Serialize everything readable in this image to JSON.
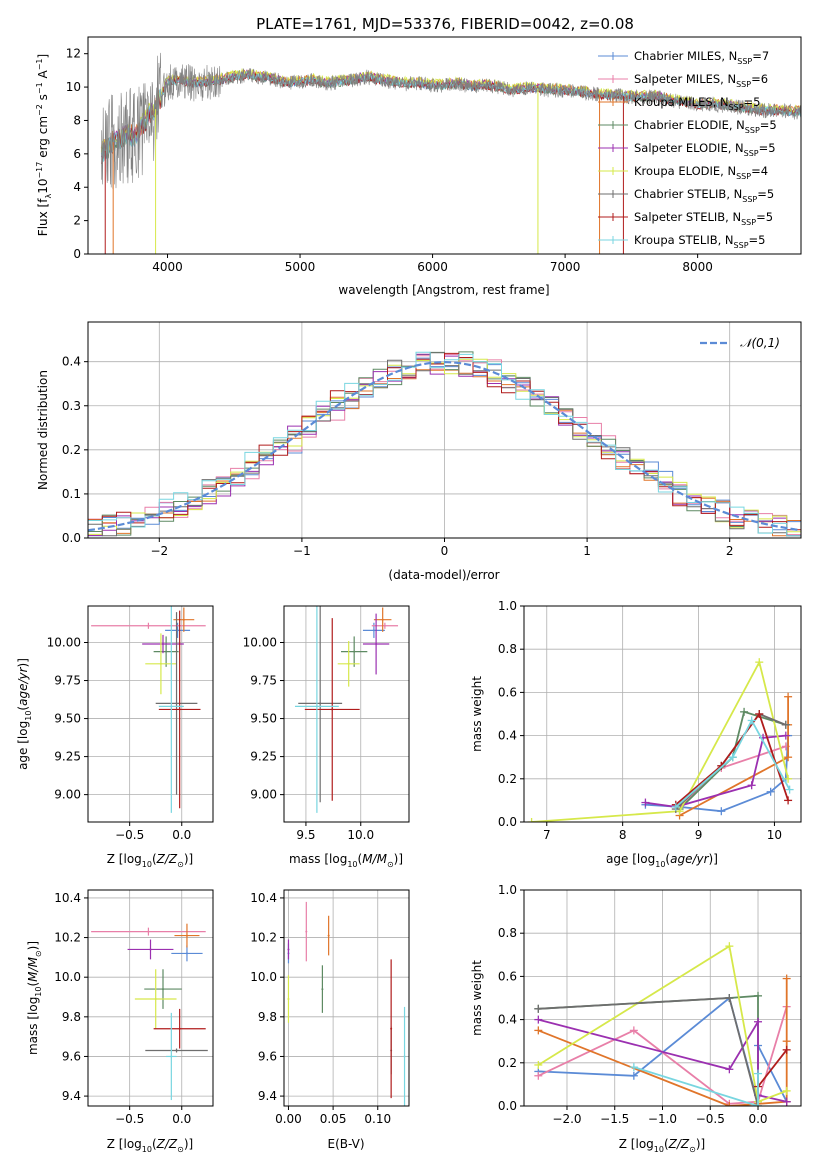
{
  "figure": {
    "title": "PLATE=1761, MJD=53376, FIBERID=0042, z=0.08"
  },
  "colors": {
    "Chabrier MILES": "#5b8bd6",
    "Salpeter MILES": "#e87fa8",
    "Kroupa MILES": "#e0752a",
    "Chabrier ELODIE": "#5e8a63",
    "Salpeter ELODIE": "#9b30b0",
    "Kroupa ELODIE": "#d6e84a",
    "Chabrier STELIB": "#6e6e6e",
    "Salpeter STELIB": "#b01c1c",
    "Kroupa STELIB": "#78d6e0"
  },
  "chart_data": [
    {
      "id": "spectrum",
      "type": "line",
      "title": "PLATE=1761, MJD=53376, FIBERID=0042, z=0.08",
      "xlabel": "wavelength [Angstrom, rest frame]",
      "ylabel": "Flux [f_λ 10^-17 erg cm^-2 s^-1 A^-1]",
      "xlim": [
        3400,
        8780
      ],
      "ylim": [
        0,
        13
      ],
      "xticks": [
        4000,
        5000,
        6000,
        7000,
        8000
      ],
      "yticks": [
        0,
        2,
        4,
        6,
        8,
        10,
        12
      ],
      "legend_position": "upper right",
      "legend": [
        "Chabrier MILES, N_SSP=7",
        "Salpeter MILES, N_SSP=6",
        "Kroupa MILES, N_SSP=5",
        "Chabrier ELODIE, N_SSP=5",
        "Salpeter ELODIE, N_SSP=5",
        "Kroupa ELODIE, N_SSP=4",
        "Chabrier STELIB, N_SSP=5",
        "Salpeter STELIB, N_SSP=5",
        "Kroupa STELIB, N_SSP=5"
      ],
      "curve_x": [
        3500,
        3550,
        3600,
        3650,
        3700,
        3750,
        3800,
        3850,
        3900,
        3950,
        4000,
        4100,
        4200,
        4300,
        4400,
        4500,
        4600,
        4700,
        4800,
        4900,
        5000,
        5100,
        5200,
        5300,
        5400,
        5500,
        5600,
        5700,
        5800,
        5900,
        6000,
        6100,
        6200,
        6300,
        6400,
        6500,
        6600,
        6700,
        6800,
        6900,
        7000,
        7100,
        7200,
        7300,
        7400,
        7500,
        7600,
        7700,
        7800,
        7900,
        8000,
        8100,
        8200,
        8300,
        8400,
        8500,
        8600,
        8700,
        8780
      ],
      "curve_y": [
        6.0,
        6.3,
        6.8,
        6.9,
        7.2,
        6.9,
        7.5,
        8.2,
        8.5,
        9.4,
        10.3,
        10.4,
        10.2,
        10.3,
        10.4,
        10.6,
        10.7,
        10.6,
        10.5,
        10.2,
        10.3,
        10.4,
        10.2,
        10.3,
        10.4,
        10.6,
        10.4,
        10.3,
        10.2,
        10.2,
        10.1,
        10.1,
        10.2,
        10.0,
        10.1,
        10.0,
        9.8,
        9.9,
        9.9,
        9.8,
        9.8,
        9.7,
        9.6,
        9.5,
        9.5,
        9.4,
        9.4,
        9.4,
        9.2,
        9.1,
        8.9,
        9.0,
        8.9,
        8.8,
        8.7,
        8.6,
        8.6,
        8.5,
        8.5
      ],
      "series_offsets": [
        0.0,
        0.05,
        0.15,
        -0.05,
        0.1,
        0.2,
        -0.1,
        -0.05,
        0.0
      ]
    },
    {
      "id": "residuals",
      "type": "line",
      "xlabel": "(data-model)/error",
      "ylabel": "Normed distribution",
      "xlim": [
        -2.5,
        2.5
      ],
      "ylim": [
        0,
        0.49
      ],
      "xticks": [
        -2,
        -1,
        0,
        1,
        2
      ],
      "yticks": [
        0.0,
        0.1,
        0.2,
        0.3,
        0.4
      ],
      "legend_position": "upper right",
      "legend": [
        "𝒩(0,1)"
      ],
      "bin_width": 0.1
    },
    {
      "id": "age_vs_z",
      "type": "scatter",
      "xlabel": "Z [log10(Z/Z⊙)]",
      "ylabel": "age  [log10(age/yr)]",
      "xlim": [
        -0.9,
        0.3
      ],
      "ylim": [
        8.82,
        10.24
      ],
      "xticks": [
        -0.5,
        0.0
      ],
      "yticks": [
        9.0,
        9.25,
        9.5,
        9.75,
        10.0
      ],
      "points": [
        {
          "model": "Chabrier MILES",
          "x": -0.04,
          "y": 10.08,
          "xerr": 0.12,
          "yerr": 0.05
        },
        {
          "model": "Salpeter MILES",
          "x": -0.32,
          "y": 10.11,
          "xerr": 0.55,
          "yerr": 0.02
        },
        {
          "model": "Kroupa MILES",
          "x": 0.02,
          "y": 10.15,
          "xerr": 0.1,
          "yerr": 0.08
        },
        {
          "model": "Chabrier ELODIE",
          "x": -0.15,
          "y": 9.94,
          "xerr": 0.12,
          "yerr": 0.1
        },
        {
          "model": "Salpeter ELODIE",
          "x": -0.18,
          "y": 9.99,
          "xerr": 0.2,
          "yerr": 0.06
        },
        {
          "model": "Kroupa ELODIE",
          "x": -0.2,
          "y": 9.86,
          "xerr": 0.15,
          "yerr": 0.2
        },
        {
          "model": "Chabrier STELIB",
          "x": -0.05,
          "y": 9.6,
          "xerr": 0.2,
          "yerr": 0.6
        },
        {
          "model": "Salpeter STELIB",
          "x": -0.02,
          "y": 9.56,
          "xerr": 0.2,
          "yerr": 0.65
        },
        {
          "model": "Kroupa STELIB",
          "x": -0.1,
          "y": 9.58,
          "xerr": 0.12,
          "yerr": 0.7
        }
      ]
    },
    {
      "id": "age_vs_mass",
      "type": "scatter",
      "xlabel": "mass [log10(M/M⊙)]",
      "ylabel": "",
      "xlim": [
        9.3,
        10.44
      ],
      "ylim": [
        8.82,
        10.24
      ],
      "xticks": [
        9.5,
        10.0
      ],
      "yticks": [
        9.0,
        9.25,
        9.5,
        9.75,
        10.0
      ],
      "points": [
        {
          "model": "Chabrier MILES",
          "x": 10.12,
          "y": 10.08,
          "xerr": 0.1,
          "yerr": 0.05
        },
        {
          "model": "Salpeter MILES",
          "x": 10.22,
          "y": 10.11,
          "xerr": 0.12,
          "yerr": 0.02
        },
        {
          "model": "Kroupa MILES",
          "x": 10.2,
          "y": 10.15,
          "xerr": 0.08,
          "yerr": 0.08
        },
        {
          "model": "Chabrier ELODIE",
          "x": 9.94,
          "y": 9.94,
          "xerr": 0.12,
          "yerr": 0.1
        },
        {
          "model": "Salpeter ELODIE",
          "x": 10.14,
          "y": 9.99,
          "xerr": 0.12,
          "yerr": 0.2
        },
        {
          "model": "Kroupa ELODIE",
          "x": 9.89,
          "y": 9.86,
          "xerr": 0.1,
          "yerr": 0.15
        },
        {
          "model": "Chabrier STELIB",
          "x": 9.63,
          "y": 9.6,
          "xerr": 0.2,
          "yerr": 0.65
        },
        {
          "model": "Salpeter STELIB",
          "x": 9.74,
          "y": 9.56,
          "xerr": 0.25,
          "yerr": 0.6
        },
        {
          "model": "Kroupa STELIB",
          "x": 9.6,
          "y": 9.58,
          "xerr": 0.2,
          "yerr": 0.7
        }
      ]
    },
    {
      "id": "massweight_vs_age",
      "type": "line",
      "xlabel": "age  [log10(age/yr)]",
      "ylabel": "mass weight",
      "xlim": [
        6.7,
        10.35
      ],
      "ylim": [
        0,
        1.0
      ],
      "xticks": [
        7,
        8,
        9,
        10
      ],
      "yticks": [
        0.0,
        0.2,
        0.4,
        0.6,
        0.8,
        1.0
      ],
      "series": [
        {
          "model": "Chabrier MILES",
          "x": [
            8.3,
            8.75,
            9.3,
            9.95,
            10.15,
            10.18
          ],
          "y": [
            0.08,
            0.07,
            0.05,
            0.14,
            0.2,
            0.4
          ]
        },
        {
          "model": "Salpeter MILES",
          "x": [
            8.75,
            9.3,
            10.15
          ],
          "y": [
            0.07,
            0.25,
            0.35
          ]
        },
        {
          "model": "Kroupa MILES",
          "x": [
            8.75,
            10.18,
            10.18,
            10.18
          ],
          "y": [
            0.03,
            0.3,
            0.45,
            0.58
          ]
        },
        {
          "model": "Chabrier ELODIE",
          "x": [
            8.75,
            9.45,
            9.6,
            10.15
          ],
          "y": [
            0.06,
            0.3,
            0.51,
            0.45
          ]
        },
        {
          "model": "Salpeter ELODIE",
          "x": [
            8.3,
            8.7,
            9.7,
            9.85,
            10.15
          ],
          "y": [
            0.09,
            0.07,
            0.17,
            0.39,
            0.4
          ]
        },
        {
          "model": "Kroupa ELODIE",
          "x": [
            6.8,
            8.75,
            9.8,
            10.18
          ],
          "y": [
            0.0,
            0.05,
            0.74,
            0.2
          ]
        },
        {
          "model": "Chabrier STELIB",
          "x": [
            8.7,
            9.3,
            9.8,
            10.15
          ],
          "y": [
            0.06,
            0.26,
            0.5,
            0.45
          ]
        },
        {
          "model": "Salpeter STELIB",
          "x": [
            8.7,
            9.3,
            9.8,
            10.18
          ],
          "y": [
            0.08,
            0.26,
            0.5,
            0.1
          ]
        },
        {
          "model": "Kroupa STELIB",
          "x": [
            8.7,
            9.45,
            9.7,
            10.2
          ],
          "y": [
            0.07,
            0.3,
            0.47,
            0.15
          ]
        }
      ]
    },
    {
      "id": "mass_vs_z",
      "type": "scatter",
      "xlabel": "Z [log10(Z/Z⊙)]",
      "ylabel": "mass [log10(M/M⊙)]",
      "xlim": [
        -0.9,
        0.3
      ],
      "ylim": [
        9.35,
        10.44
      ],
      "xticks": [
        -0.5,
        0.0
      ],
      "yticks": [
        9.4,
        9.6,
        9.8,
        10.0,
        10.2,
        10.4
      ],
      "points": [
        {
          "model": "Chabrier MILES",
          "x": 0.05,
          "y": 10.12,
          "xerr": 0.15,
          "yerr": 0.04
        },
        {
          "model": "Salpeter MILES",
          "x": -0.32,
          "y": 10.23,
          "xerr": 0.55,
          "yerr": 0.02
        },
        {
          "model": "Kroupa MILES",
          "x": 0.05,
          "y": 10.21,
          "xerr": 0.12,
          "yerr": 0.06
        },
        {
          "model": "Chabrier ELODIE",
          "x": -0.18,
          "y": 9.94,
          "xerr": 0.18,
          "yerr": 0.1
        },
        {
          "model": "Salpeter ELODIE",
          "x": -0.3,
          "y": 10.14,
          "xerr": 0.22,
          "yerr": 0.05
        },
        {
          "model": "Kroupa ELODIE",
          "x": -0.25,
          "y": 9.89,
          "xerr": 0.2,
          "yerr": 0.15
        },
        {
          "model": "Chabrier STELIB",
          "x": -0.05,
          "y": 9.63,
          "xerr": 0.3,
          "yerr": 0.01
        },
        {
          "model": "Salpeter STELIB",
          "x": -0.02,
          "y": 9.74,
          "xerr": 0.25,
          "yerr": 0.1
        },
        {
          "model": "Kroupa STELIB",
          "x": -0.1,
          "y": 9.6,
          "xerr": 0.05,
          "yerr": 0.22
        }
      ]
    },
    {
      "id": "mass_vs_ebv",
      "type": "scatter",
      "xlabel": "E(B-V)",
      "ylabel": "",
      "xlim": [
        -0.005,
        0.135
      ],
      "ylim": [
        9.35,
        10.44
      ],
      "xticks": [
        0.0,
        0.05,
        0.1
      ],
      "yticks": [
        9.4,
        9.6,
        9.8,
        10.0,
        10.2,
        10.4
      ],
      "points": [
        {
          "model": "Chabrier MILES",
          "x": 0.0,
          "y": 10.12,
          "yerr": 0.05
        },
        {
          "model": "Salpeter MILES",
          "x": 0.02,
          "y": 10.23,
          "yerr": 0.15
        },
        {
          "model": "Kroupa MILES",
          "x": 0.045,
          "y": 10.21,
          "yerr": 0.1
        },
        {
          "model": "Chabrier ELODIE",
          "x": 0.038,
          "y": 9.94,
          "yerr": 0.12
        },
        {
          "model": "Salpeter ELODIE",
          "x": 0.0,
          "y": 10.14,
          "yerr": 0.05
        },
        {
          "model": "Kroupa ELODIE",
          "x": 0.0,
          "y": 9.89,
          "yerr": 0.12
        },
        {
          "model": "Chabrier STELIB",
          "x": 0.115,
          "y": 9.63,
          "yerr": 0.12
        },
        {
          "model": "Salpeter STELIB",
          "x": 0.115,
          "y": 9.74,
          "yerr": 0.35
        },
        {
          "model": "Kroupa STELIB",
          "x": 0.13,
          "y": 9.6,
          "yerr": 0.25
        }
      ]
    },
    {
      "id": "massweight_vs_z",
      "type": "line",
      "xlabel": "Z [log10(Z/Z⊙)]",
      "ylabel": "mass weight",
      "xlim": [
        -2.45,
        0.45
      ],
      "ylim": [
        0,
        1.0
      ],
      "xticks": [
        -2.0,
        -1.5,
        -1.0,
        -0.5,
        0.0
      ],
      "yticks": [
        0.0,
        0.2,
        0.4,
        0.6,
        0.8,
        1.0
      ],
      "series": [
        {
          "model": "Chabrier MILES",
          "x": [
            -2.3,
            -1.3,
            -0.3,
            0.0,
            0.0,
            0.3
          ],
          "y": [
            0.16,
            0.14,
            0.5,
            0.01,
            0.28,
            0.02
          ]
        },
        {
          "model": "Salpeter MILES",
          "x": [
            -2.3,
            -1.3,
            -0.3,
            0.0,
            0.3
          ],
          "y": [
            0.14,
            0.35,
            0.01,
            0.02,
            0.46
          ]
        },
        {
          "model": "Kroupa MILES",
          "x": [
            -2.3,
            -0.3,
            0.3,
            0.3,
            0.3
          ],
          "y": [
            0.35,
            0.0,
            0.02,
            0.3,
            0.59
          ]
        },
        {
          "model": "Chabrier ELODIE",
          "x": [
            -2.3,
            -0.3,
            0.0,
            0.0
          ],
          "y": [
            0.45,
            0.5,
            0.51,
            0.02
          ]
        },
        {
          "model": "Salpeter ELODIE",
          "x": [
            -2.3,
            -0.3,
            0.0,
            0.0,
            0.3
          ],
          "y": [
            0.4,
            0.17,
            0.39,
            0.05,
            0.02
          ]
        },
        {
          "model": "Kroupa ELODIE",
          "x": [
            -2.3,
            -0.3,
            0.0,
            0.3
          ],
          "y": [
            0.19,
            0.74,
            0.02,
            0.07
          ]
        },
        {
          "model": "Chabrier STELIB",
          "x": [
            -2.3,
            -0.3,
            0.0
          ],
          "y": [
            0.45,
            0.5,
            0.0
          ]
        },
        {
          "model": "Salpeter STELIB",
          "x": [
            0.0,
            0.3
          ],
          "y": [
            0.09,
            0.26
          ]
        },
        {
          "model": "Kroupa STELIB",
          "x": [
            -1.3,
            0.0,
            0.0
          ],
          "y": [
            0.18,
            0.0,
            0.15
          ]
        }
      ]
    }
  ]
}
